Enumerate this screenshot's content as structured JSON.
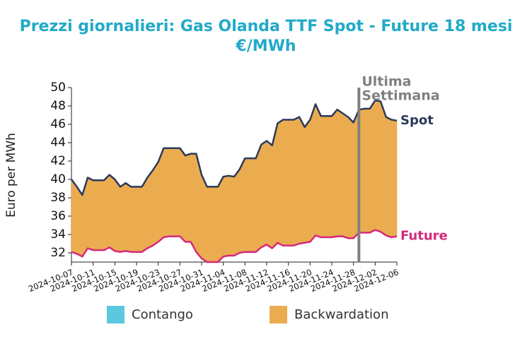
{
  "chart_data": {
    "type": "line",
    "title": "Prezzi giornalieri: Gas Olanda TTF Spot - Future 18 mesi",
    "subtitle": "€/MWh",
    "y_label": "Euro per MWh",
    "x": [
      "2024-10-07",
      "2024-10-08",
      "2024-10-09",
      "2024-10-10",
      "2024-10-11",
      "2024-10-12",
      "2024-10-13",
      "2024-10-14",
      "2024-10-15",
      "2024-10-16",
      "2024-10-17",
      "2024-10-18",
      "2024-10-19",
      "2024-10-20",
      "2024-10-21",
      "2024-10-22",
      "2024-10-23",
      "2024-10-24",
      "2024-10-25",
      "2024-10-26",
      "2024-10-27",
      "2024-10-28",
      "2024-10-29",
      "2024-10-30",
      "2024-10-31",
      "2024-11-01",
      "2024-11-02",
      "2024-11-03",
      "2024-11-04",
      "2024-11-05",
      "2024-11-06",
      "2024-11-07",
      "2024-11-08",
      "2024-11-09",
      "2024-11-10",
      "2024-11-11",
      "2024-11-12",
      "2024-11-13",
      "2024-11-14",
      "2024-11-15",
      "2024-11-16",
      "2024-11-17",
      "2024-11-18",
      "2024-11-19",
      "2024-11-20",
      "2024-11-21",
      "2024-11-22",
      "2024-11-23",
      "2024-11-24",
      "2024-11-25",
      "2024-11-26",
      "2024-11-27",
      "2024-11-28",
      "2024-11-29",
      "2024-11-30",
      "2024-12-01",
      "2024-12-02",
      "2024-12-03",
      "2024-12-04",
      "2024-12-05",
      "2024-12-06"
    ],
    "series": [
      {
        "name": "Spot",
        "color": "#2b3a5c",
        "values": [
          40.0,
          39.2,
          38.3,
          40.2,
          39.9,
          39.9,
          39.9,
          40.5,
          40.0,
          39.2,
          39.6,
          39.2,
          39.2,
          39.2,
          40.2,
          41.0,
          41.9,
          43.4,
          43.4,
          43.4,
          43.4,
          42.6,
          42.8,
          42.8,
          40.5,
          39.2,
          39.2,
          39.2,
          40.3,
          40.4,
          40.3,
          41.1,
          42.3,
          42.3,
          42.3,
          43.8,
          44.2,
          43.7,
          46.1,
          46.5,
          46.5,
          46.5,
          46.8,
          45.7,
          46.5,
          48.2,
          46.9,
          46.9,
          46.9,
          47.6,
          47.2,
          46.8,
          46.2,
          47.6,
          47.7,
          47.7,
          48.6,
          48.5,
          46.8,
          46.5,
          46.4
        ]
      },
      {
        "name": "Future",
        "color": "#d6287a",
        "values": [
          32.1,
          31.9,
          31.6,
          32.5,
          32.3,
          32.3,
          32.3,
          32.6,
          32.2,
          32.1,
          32.2,
          32.1,
          32.1,
          32.1,
          32.5,
          32.8,
          33.2,
          33.7,
          33.8,
          33.8,
          33.8,
          33.2,
          33.2,
          32.1,
          31.4,
          31.0,
          31.0,
          31.0,
          31.6,
          31.7,
          31.7,
          32.0,
          32.1,
          32.1,
          32.1,
          32.6,
          32.9,
          32.5,
          33.1,
          32.8,
          32.8,
          32.8,
          33.0,
          33.1,
          33.2,
          33.9,
          33.7,
          33.7,
          33.7,
          33.8,
          33.8,
          33.6,
          33.6,
          34.2,
          34.2,
          34.2,
          34.5,
          34.3,
          33.9,
          33.7,
          33.8
        ]
      }
    ],
    "fills": [
      {
        "name": "Contango",
        "color": "#5bc8e0"
      },
      {
        "name": "Backwardation",
        "color": "#ebac4f"
      }
    ],
    "annotation": {
      "x": "2024-11-29",
      "lines": [
        "Ultima",
        "Settimana"
      ],
      "color": "#808080"
    },
    "xlim": [
      "2024-10-07",
      "2024-12-06"
    ],
    "xticks": [
      "2024-10-07",
      "2024-10-11",
      "2024-10-15",
      "2024-10-19",
      "2024-10-23",
      "2024-10-27",
      "2024-10-31",
      "2024-11-04",
      "2024-11-08",
      "2024-11-12",
      "2024-11-16",
      "2024-11-20",
      "2024-11-24",
      "2024-11-28",
      "2024-12-02",
      "2024-12-06"
    ],
    "ylim": [
      31,
      50
    ],
    "yticks": [
      32,
      34,
      36,
      38,
      40,
      42,
      44,
      46,
      48,
      50
    ]
  }
}
